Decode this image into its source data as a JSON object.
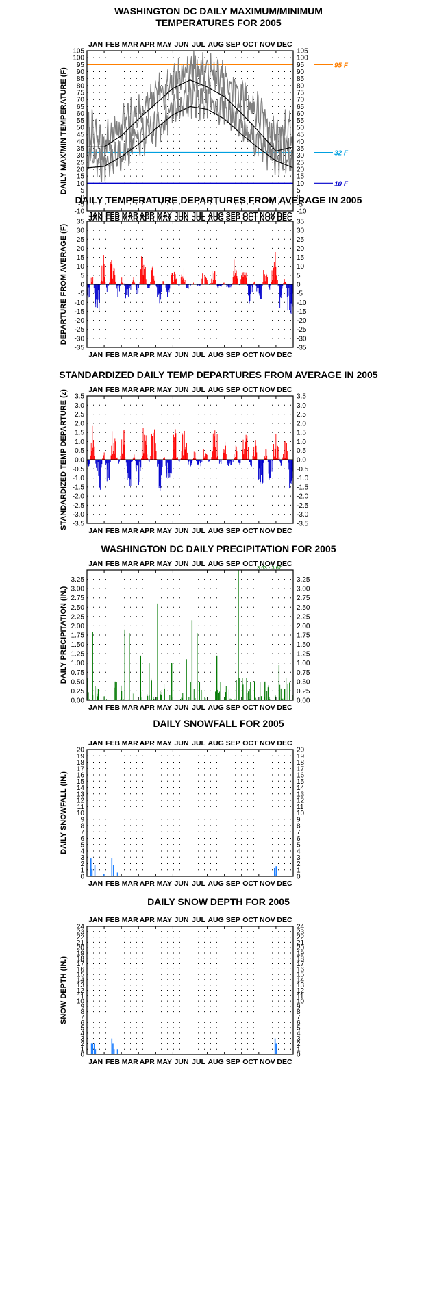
{
  "months": [
    "JAN",
    "FEB",
    "MAR",
    "APR",
    "MAY",
    "JUN",
    "JUL",
    "AUG",
    "SEP",
    "OCT",
    "NOV",
    "DEC"
  ],
  "colors": {
    "hot": "#ff7f00",
    "freeze": "#00a0e0",
    "cold": "#0000cc",
    "above": "#ff0000",
    "below": "#0000cc",
    "precip": "#007700",
    "snow": "#2080ff",
    "observed": "#808080",
    "normal": "#000000"
  },
  "chart_data": [
    {
      "type": "line",
      "title": "WASHINGTON DC DAILY MAXIMUM/MINIMUM",
      "subtitle": "TEMPERATURES FOR 2005",
      "xlabel": "",
      "ylabel": "DAILY MAX/MIN TEMPERATURE (F)",
      "ylim": [
        -10,
        105
      ],
      "yticks": [
        -10,
        -5,
        0,
        5,
        10,
        15,
        20,
        25,
        30,
        35,
        40,
        45,
        50,
        55,
        60,
        65,
        70,
        75,
        80,
        85,
        90,
        95,
        100,
        105
      ],
      "reference_lines": [
        {
          "value": 95,
          "label": "95 F",
          "color": "#ff7f00"
        },
        {
          "value": 32,
          "label": "32 F",
          "color": "#00a0e0"
        },
        {
          "value": 10,
          "label": "10 F",
          "color": "#0000cc"
        }
      ],
      "series_by_month_day1": [
        {
          "name": "",
          "values": [
            36,
            36,
            44,
            56,
            67,
            78,
            84,
            79,
            72,
            60,
            47,
            33
          ]
        },
        {
          "name": "",
          "values": [
            21,
            22,
            29,
            38,
            49,
            59,
            65,
            63,
            56,
            45,
            35,
            26
          ]
        },
        {
          "name": "",
          "values": [
            50,
            38,
            52,
            60,
            71,
            84,
            92,
            91,
            83,
            73,
            60,
            44
          ]
        },
        {
          "name": "",
          "values": [
            32,
            24,
            33,
            41,
            50,
            62,
            72,
            70,
            64,
            54,
            41,
            27
          ]
        }
      ]
    },
    {
      "type": "bar",
      "title": "DAILY TEMPERATURE DEPARTURES FROM AVERAGE IN 2005",
      "xlabel": "",
      "ylabel": "DEPARTURE FROM AVERAGE (F)",
      "ylim": [
        -35,
        35
      ],
      "yticks": [
        -35,
        -30,
        -25,
        -20,
        -15,
        -10,
        -5,
        0,
        5,
        10,
        15,
        20,
        25,
        30,
        35
      ],
      "monthly_peaks": {
        "positive": [
          22,
          14,
          8,
          16,
          8,
          9,
          7,
          8,
          14,
          8,
          18,
          10
        ],
        "negative": [
          -18,
          -12,
          -10,
          -7,
          -11,
          -3,
          -1,
          -2,
          -2,
          -11,
          -9,
          -17
        ]
      }
    },
    {
      "type": "bar",
      "title": "STANDARDIZED DAILY TEMP DEPARTURES FROM AVERAGE IN 2005",
      "xlabel": "",
      "ylabel": "STANDARDIZED TEMP DEPARTURE (z)",
      "ylim": [
        -3.5,
        3.5
      ],
      "yticks": [
        -3.5,
        -3.0,
        -2.5,
        -2.0,
        -1.5,
        -1.0,
        -0.5,
        0.0,
        0.5,
        1.0,
        1.5,
        2.0,
        2.5,
        3.0,
        3.5
      ],
      "monthly_peaks": {
        "positive": [
          2.1,
          1.6,
          1.7,
          1.9,
          1.2,
          1.8,
          1.8,
          1.9,
          1.9,
          1.6,
          2.3,
          1.2
        ],
        "negative": [
          -1.8,
          -1.4,
          -1.5,
          -1.3,
          -1.8,
          -0.6,
          -0.4,
          -0.4,
          -0.4,
          -1.5,
          -1.5,
          -2.0
        ]
      }
    },
    {
      "type": "bar",
      "title": "WASHINGTON DC DAILY PRECIPITATION FOR 2005",
      "xlabel": "",
      "ylabel": "DAILY PRECIPITATION (IN.)",
      "ylim": [
        0,
        3.5
      ],
      "yticks": [
        0.0,
        0.25,
        0.5,
        0.75,
        1.0,
        1.25,
        1.5,
        1.75,
        2.0,
        2.25,
        2.5,
        2.75,
        3.0,
        3.25
      ],
      "annotation": "3.63 - 3.67",
      "events": [
        {
          "day": 10,
          "value": 1.83
        },
        {
          "day": 20,
          "value": 0.3
        },
        {
          "day": 50,
          "value": 0.5
        },
        {
          "day": 67,
          "value": 1.9
        },
        {
          "day": 75,
          "value": 1.8
        },
        {
          "day": 95,
          "value": 1.2
        },
        {
          "day": 110,
          "value": 1.0
        },
        {
          "day": 125,
          "value": 2.6
        },
        {
          "day": 150,
          "value": 1.0
        },
        {
          "day": 176,
          "value": 1.1
        },
        {
          "day": 186,
          "value": 2.15
        },
        {
          "day": 195,
          "value": 1.8
        },
        {
          "day": 230,
          "value": 1.2
        },
        {
          "day": 268,
          "value": 3.67
        },
        {
          "day": 275,
          "value": 0.6
        },
        {
          "day": 315,
          "value": 0.5
        },
        {
          "day": 340,
          "value": 0.95
        },
        {
          "day": 350,
          "value": 0.3
        }
      ]
    },
    {
      "type": "bar",
      "title": "DAILY SNOWFALL FOR 2005",
      "xlabel": "",
      "ylabel": "DAILY SNOWFALL (IN.)",
      "ylim": [
        0,
        20
      ],
      "yticks": [
        0,
        1,
        2,
        3,
        4,
        5,
        6,
        7,
        8,
        9,
        10,
        11,
        12,
        13,
        14,
        15,
        16,
        17,
        18,
        19,
        20
      ],
      "events": [
        {
          "day": 7,
          "value": 2.8
        },
        {
          "day": 9,
          "value": 1.2
        },
        {
          "day": 14,
          "value": 1.8
        },
        {
          "day": 30,
          "value": 0.4
        },
        {
          "day": 44,
          "value": 2.9
        },
        {
          "day": 47,
          "value": 1.8
        },
        {
          "day": 54,
          "value": 0.6
        },
        {
          "day": 332,
          "value": 1.3
        },
        {
          "day": 335,
          "value": 1.6
        }
      ]
    },
    {
      "type": "bar",
      "title": "DAILY SNOW DEPTH FOR 2005",
      "xlabel": "",
      "ylabel": "SNOW DEPTH (IN.)",
      "ylim": [
        0,
        24
      ],
      "yticks": [
        0,
        1,
        2,
        3,
        4,
        5,
        6,
        7,
        8,
        9,
        10,
        11,
        12,
        13,
        14,
        15,
        16,
        17,
        18,
        19,
        20,
        21,
        22,
        23,
        24
      ],
      "events": [
        {
          "day": 8,
          "value": 2.0
        },
        {
          "day": 10,
          "value": 2.0
        },
        {
          "day": 13,
          "value": 2.0
        },
        {
          "day": 15,
          "value": 1.0
        },
        {
          "day": 44,
          "value": 3.0
        },
        {
          "day": 46,
          "value": 2.0
        },
        {
          "day": 48,
          "value": 1.0
        },
        {
          "day": 54,
          "value": 1.0
        },
        {
          "day": 333,
          "value": 3.0
        },
        {
          "day": 335,
          "value": 2.0
        }
      ]
    }
  ]
}
